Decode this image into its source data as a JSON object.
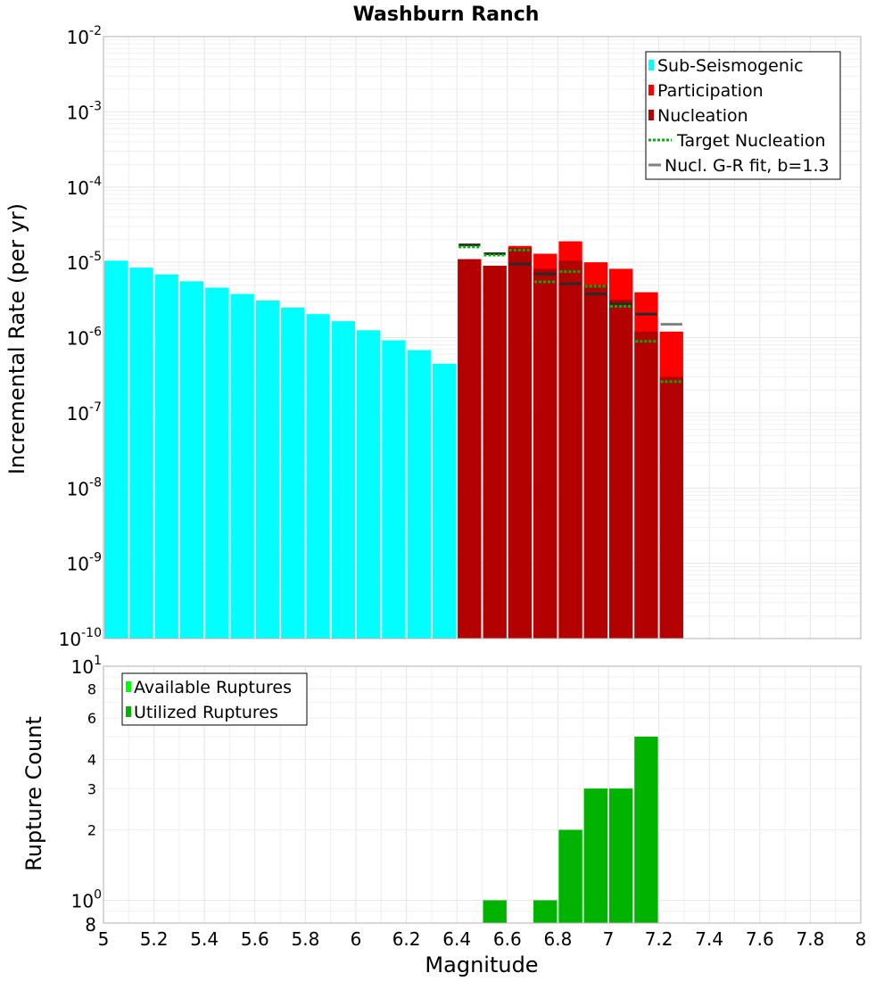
{
  "chart_data": [
    {
      "type": "bar",
      "title": "Washburn Ranch",
      "xlabel": "",
      "ylabel": "Incremental Rate (per yr)",
      "yscale": "log",
      "xlim": [
        5,
        8
      ],
      "ylim": [
        1e-10,
        0.01
      ],
      "y_tick_exponents": [
        -10,
        -9,
        -8,
        -7,
        -6,
        -5,
        -4,
        -3,
        -2
      ],
      "bin_width": 0.1,
      "series": [
        {
          "name": "Sub-Seismogenic",
          "color": "#00ffff",
          "x": [
            5.05,
            5.15,
            5.25,
            5.35,
            5.45,
            5.55,
            5.65,
            5.75,
            5.85,
            5.95,
            6.05,
            6.15,
            6.25,
            6.35
          ],
          "values": [
            1.05e-05,
            8.5e-06,
            6.9e-06,
            5.6e-06,
            4.6e-06,
            3.8e-06,
            3.1e-06,
            2.5e-06,
            2.05e-06,
            1.65e-06,
            1.25e-06,
            9.2e-07,
            6.8e-07,
            4.5e-07
          ]
        },
        {
          "name": "Participation",
          "color": "#ff0000",
          "x": [
            6.45,
            6.55,
            6.65,
            6.75,
            6.85,
            6.95,
            7.05,
            7.15,
            7.25
          ],
          "values": [
            1.1e-05,
            9e-06,
            1.65e-05,
            1.3e-05,
            1.9e-05,
            1e-05,
            8.2e-06,
            4e-06,
            1.2e-06
          ]
        },
        {
          "name": "Nucleation",
          "color": "#b30000",
          "x": [
            6.45,
            6.55,
            6.65,
            6.75,
            6.85,
            6.95,
            7.05,
            7.15,
            7.25
          ],
          "values": [
            1.1e-05,
            9e-06,
            1.55e-05,
            8.2e-06,
            1.05e-05,
            5e-06,
            3.2e-06,
            1.2e-06,
            3e-07
          ]
        },
        {
          "name": "Target Nucleation",
          "color": "#00b300",
          "style": "dotted",
          "x": [
            6.45,
            6.55,
            6.65,
            6.75,
            6.85,
            6.95,
            7.05,
            7.15,
            7.25
          ],
          "values": [
            1.6e-05,
            1.25e-05,
            1.45e-05,
            5.5e-06,
            7.5e-06,
            4.8e-06,
            2.6e-06,
            8.9e-07,
            2.6e-07
          ]
        },
        {
          "name": "Nucl. G-R fit, b=1.3",
          "color": "#808080",
          "x": [
            6.45,
            6.55,
            6.65,
            6.75,
            6.85,
            6.95,
            7.05,
            7.15,
            7.25
          ],
          "values": [
            1.7e-05,
            1.3e-05,
            9.5e-06,
            7e-06,
            5.2e-06,
            3.8e-06,
            2.8e-06,
            2.05e-06,
            1.5e-06
          ]
        }
      ],
      "legend": {
        "position": "top-right",
        "entries": [
          "Sub-Seismogenic",
          "Participation",
          "Nucleation",
          "Target Nucleation",
          "Nucl. G-R fit, b=1.3"
        ]
      }
    },
    {
      "type": "bar",
      "title": "",
      "xlabel": "Magnitude",
      "ylabel": "Rupture Count",
      "yscale": "log",
      "xlim": [
        5,
        8
      ],
      "ylim": [
        0.8,
        10
      ],
      "x_ticks": [
        "5",
        "5.2",
        "5.4",
        "5.6",
        "5.8",
        "6",
        "6.2",
        "6.4",
        "6.6",
        "6.8",
        "7",
        "7.2",
        "7.4",
        "7.6",
        "7.8",
        "8"
      ],
      "y_minor_labels": [
        "8",
        "2",
        "3",
        "4",
        "6",
        "8"
      ],
      "y_major_labels": [
        "10",
        "10"
      ],
      "y_major_exponents": [
        "0",
        "1"
      ],
      "bin_width": 0.1,
      "series": [
        {
          "name": "Available Ruptures",
          "color": "#00ff00",
          "x": [
            6.55,
            6.75,
            6.85,
            6.95,
            7.05,
            7.15
          ],
          "values": [
            1,
            1,
            2,
            3,
            3,
            5
          ]
        },
        {
          "name": "Utilized Ruptures",
          "color": "#00b300",
          "x": [
            6.55,
            6.75,
            6.85,
            6.95,
            7.05,
            7.15
          ],
          "values": [
            1,
            1,
            2,
            3,
            3,
            5
          ]
        }
      ],
      "legend": {
        "position": "top-left",
        "entries": [
          "Available Ruptures",
          "Utilized Ruptures"
        ]
      }
    }
  ]
}
